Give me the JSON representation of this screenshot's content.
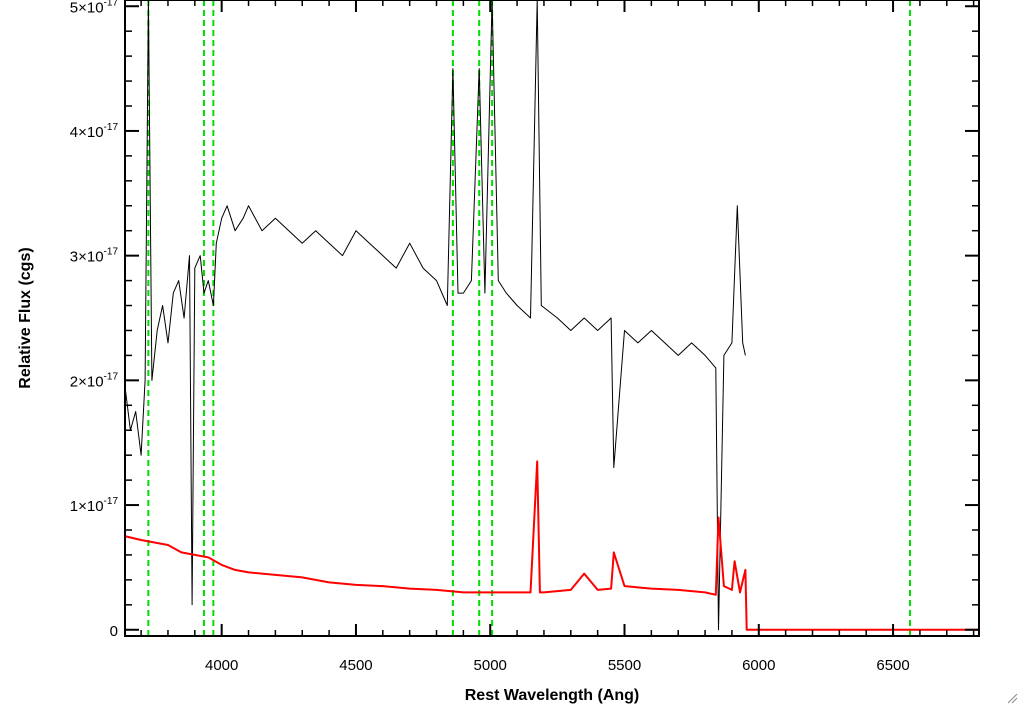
{
  "chart_data": {
    "type": "line",
    "xlabel": "Rest Wavelength (Ang)",
    "ylabel": "Relative Flux (cgs)",
    "xlim": [
      3640,
      6820
    ],
    "ylim": [
      -5e-19,
      5.05e-17
    ],
    "x_ticks": [
      {
        "value": 4000,
        "label": "4000"
      },
      {
        "value": 4500,
        "label": "4500"
      },
      {
        "value": 5000,
        "label": "5000"
      },
      {
        "value": 5500,
        "label": "5500"
      },
      {
        "value": 6000,
        "label": "6000"
      },
      {
        "value": 6500,
        "label": "6500"
      }
    ],
    "y_ticks": [
      {
        "value": 0,
        "mantissa": "0",
        "exponent": ""
      },
      {
        "value": 1e-17,
        "mantissa": "1×10",
        "exponent": "-17"
      },
      {
        "value": 2e-17,
        "mantissa": "2×10",
        "exponent": "-17"
      },
      {
        "value": 3e-17,
        "mantissa": "3×10",
        "exponent": "-17"
      },
      {
        "value": 4e-17,
        "mantissa": "4×10",
        "exponent": "-17"
      },
      {
        "value": 5e-17,
        "mantissa": "5×10",
        "exponent": "-17"
      }
    ],
    "grid": false,
    "reference_lines": {
      "color": "#00dd00",
      "style": "dashed",
      "x": [
        3727,
        3934,
        3969,
        4861,
        4959,
        5007,
        6563
      ]
    },
    "series": [
      {
        "color": "#000000",
        "x": [
          3640,
          3660,
          3680,
          3700,
          3715,
          3727,
          3740,
          3760,
          3780,
          3800,
          3820,
          3840,
          3860,
          3880,
          3890,
          3900,
          3920,
          3934,
          3950,
          3969,
          3980,
          4000,
          4020,
          4050,
          4080,
          4100,
          4150,
          4200,
          4250,
          4300,
          4350,
          4400,
          4450,
          4500,
          4550,
          4600,
          4650,
          4700,
          4750,
          4800,
          4840,
          4861,
          4880,
          4900,
          4930,
          4959,
          4980,
          5007,
          5030,
          5060,
          5100,
          5150,
          5175,
          5190,
          5250,
          5300,
          5350,
          5400,
          5450,
          5460,
          5500,
          5550,
          5600,
          5650,
          5700,
          5750,
          5800,
          5840,
          5850,
          5870,
          5900,
          5920,
          5940,
          5950
        ],
        "y": [
          1.95e-17,
          1.6e-17,
          1.75e-17,
          1.4e-17,
          2e-17,
          5.05e-17,
          2e-17,
          2.4e-17,
          2.6e-17,
          2.3e-17,
          2.7e-17,
          2.8e-17,
          2.5e-17,
          3e-17,
          2e-18,
          2.9e-17,
          3e-17,
          2.7e-17,
          2.8e-17,
          2.6e-17,
          3.1e-17,
          3.3e-17,
          3.4e-17,
          3.2e-17,
          3.3e-17,
          3.4e-17,
          3.2e-17,
          3.3e-17,
          3.2e-17,
          3.1e-17,
          3.2e-17,
          3.1e-17,
          3e-17,
          3.2e-17,
          3.1e-17,
          3e-17,
          2.9e-17,
          3.1e-17,
          2.9e-17,
          2.8e-17,
          2.6e-17,
          4.5e-17,
          2.7e-17,
          2.7e-17,
          2.8e-17,
          4.5e-17,
          2.7e-17,
          5.05e-17,
          2.8e-17,
          2.7e-17,
          2.6e-17,
          2.5e-17,
          5.05e-17,
          2.6e-17,
          2.5e-17,
          2.4e-17,
          2.5e-17,
          2.4e-17,
          2.5e-17,
          1.3e-17,
          2.4e-17,
          2.3e-17,
          2.4e-17,
          2.3e-17,
          2.2e-17,
          2.3e-17,
          2.2e-17,
          2.1e-17,
          0.0,
          2.2e-17,
          2.3e-17,
          3.4e-17,
          2.3e-17,
          2.2e-17
        ]
      },
      {
        "color": "#ff0000",
        "x": [
          3640,
          3700,
          3750,
          3800,
          3850,
          3900,
          3950,
          4000,
          4050,
          4100,
          4200,
          4300,
          4400,
          4500,
          4600,
          4700,
          4800,
          4900,
          5000,
          5100,
          5150,
          5175,
          5185,
          5200,
          5300,
          5350,
          5400,
          5450,
          5460,
          5500,
          5600,
          5700,
          5800,
          5840,
          5850,
          5870,
          5900,
          5910,
          5930,
          5950,
          5955,
          5960,
          6500,
          6820
        ],
        "y": [
          7.5e-18,
          7.2e-18,
          7e-18,
          6.8e-18,
          6.2e-18,
          6e-18,
          5.8e-18,
          5.2e-18,
          4.8e-18,
          4.6e-18,
          4.4e-18,
          4.2e-18,
          3.8e-18,
          3.6e-18,
          3.5e-18,
          3.3e-18,
          3.2e-18,
          3e-18,
          3e-18,
          3e-18,
          3e-18,
          1.35e-17,
          3e-18,
          3e-18,
          3.2e-18,
          4.5e-18,
          3.2e-18,
          3.3e-18,
          6.2e-18,
          3.5e-18,
          3.3e-18,
          3.2e-18,
          3e-18,
          2.8e-18,
          9e-18,
          3.5e-18,
          3.2e-18,
          5.5e-18,
          3e-18,
          4.8e-18,
          0.0,
          0.0,
          0.0,
          0.0
        ]
      }
    ]
  }
}
